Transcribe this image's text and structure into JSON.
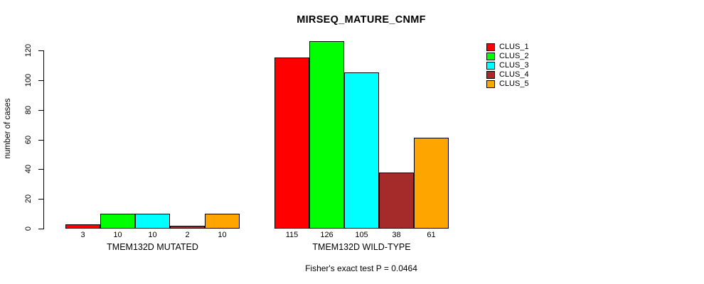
{
  "chart_data": {
    "type": "bar",
    "title": "MIRSEQ_MATURE_CNMF",
    "ylabel": "number of cases",
    "caption": "Fisher's exact test P = 0.0464",
    "yticks": [
      0,
      20,
      40,
      60,
      80,
      100,
      120
    ],
    "ylim": [
      0,
      120
    ],
    "grid": false,
    "bar_value_labels": true,
    "legend_position": "top-right",
    "categories": [
      "TMEM132D MUTATED",
      "TMEM132D WILD-TYPE"
    ],
    "series": [
      {
        "name": "CLUS_1",
        "color": "#FF0000",
        "values": [
          3,
          115
        ]
      },
      {
        "name": "CLUS_2",
        "color": "#00FF00",
        "values": [
          10,
          126
        ]
      },
      {
        "name": "CLUS_3",
        "color": "#00FFFF",
        "values": [
          10,
          105
        ]
      },
      {
        "name": "CLUS_4",
        "color": "#A52A2A",
        "values": [
          2,
          38
        ]
      },
      {
        "name": "CLUS_5",
        "color": "#FFA500",
        "values": [
          10,
          61
        ]
      }
    ]
  }
}
